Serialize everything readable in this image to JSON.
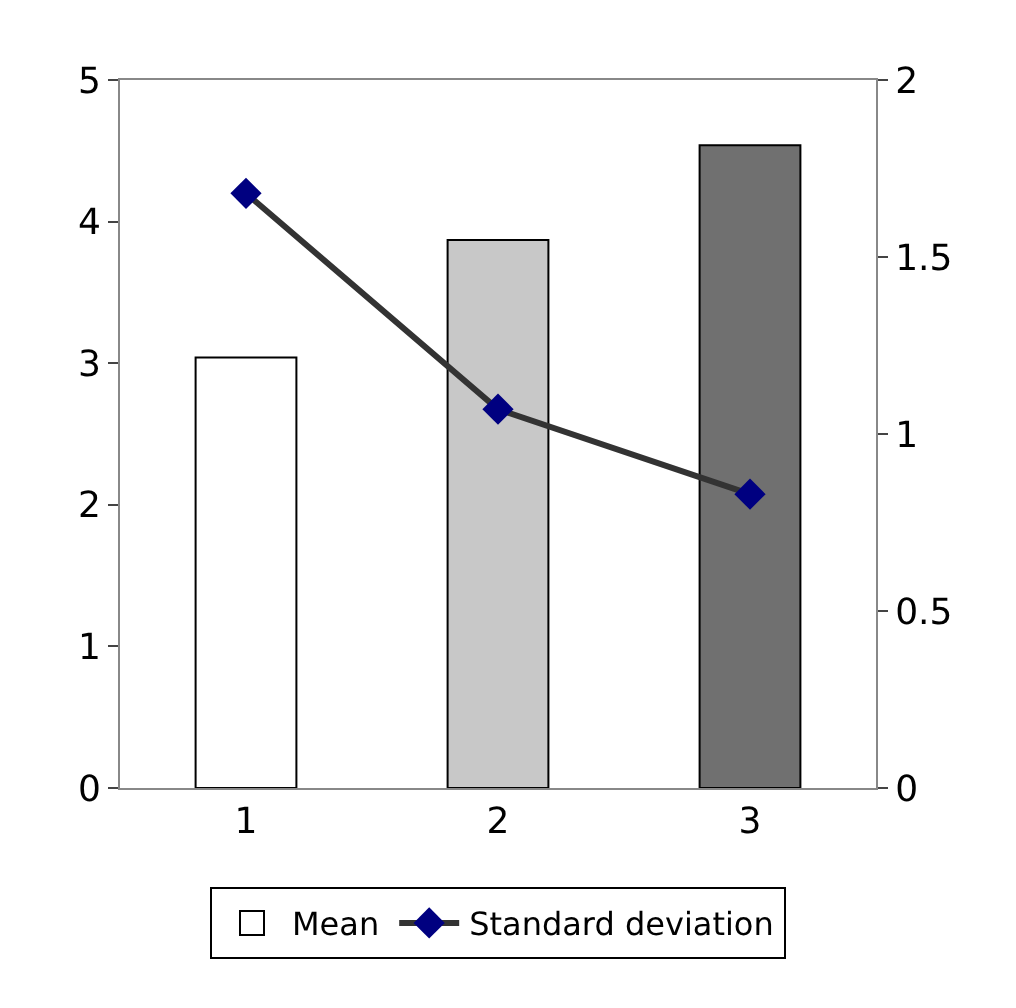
{
  "chart_data": {
    "type": "bar",
    "categories": [
      "1",
      "2",
      "3"
    ],
    "series": [
      {
        "name": "Mean",
        "colors": [
          "#ffffff",
          "#c8c8c8",
          "#707070"
        ],
        "values": [
          3.04,
          3.87,
          4.54
        ]
      },
      {
        "name": "Standard deviation",
        "type": "line",
        "axis": "y2",
        "color": "#333333",
        "marker": "diamond",
        "values": [
          1.68,
          1.07,
          0.83
        ]
      }
    ],
    "ylim": [
      0,
      5
    ],
    "yticks": [
      0,
      1,
      2,
      3,
      4,
      5
    ],
    "y2lim": [
      0,
      2
    ],
    "y2ticks": [
      0,
      0.5,
      1,
      1.5,
      2
    ],
    "grid": false,
    "legend": "bottom"
  }
}
